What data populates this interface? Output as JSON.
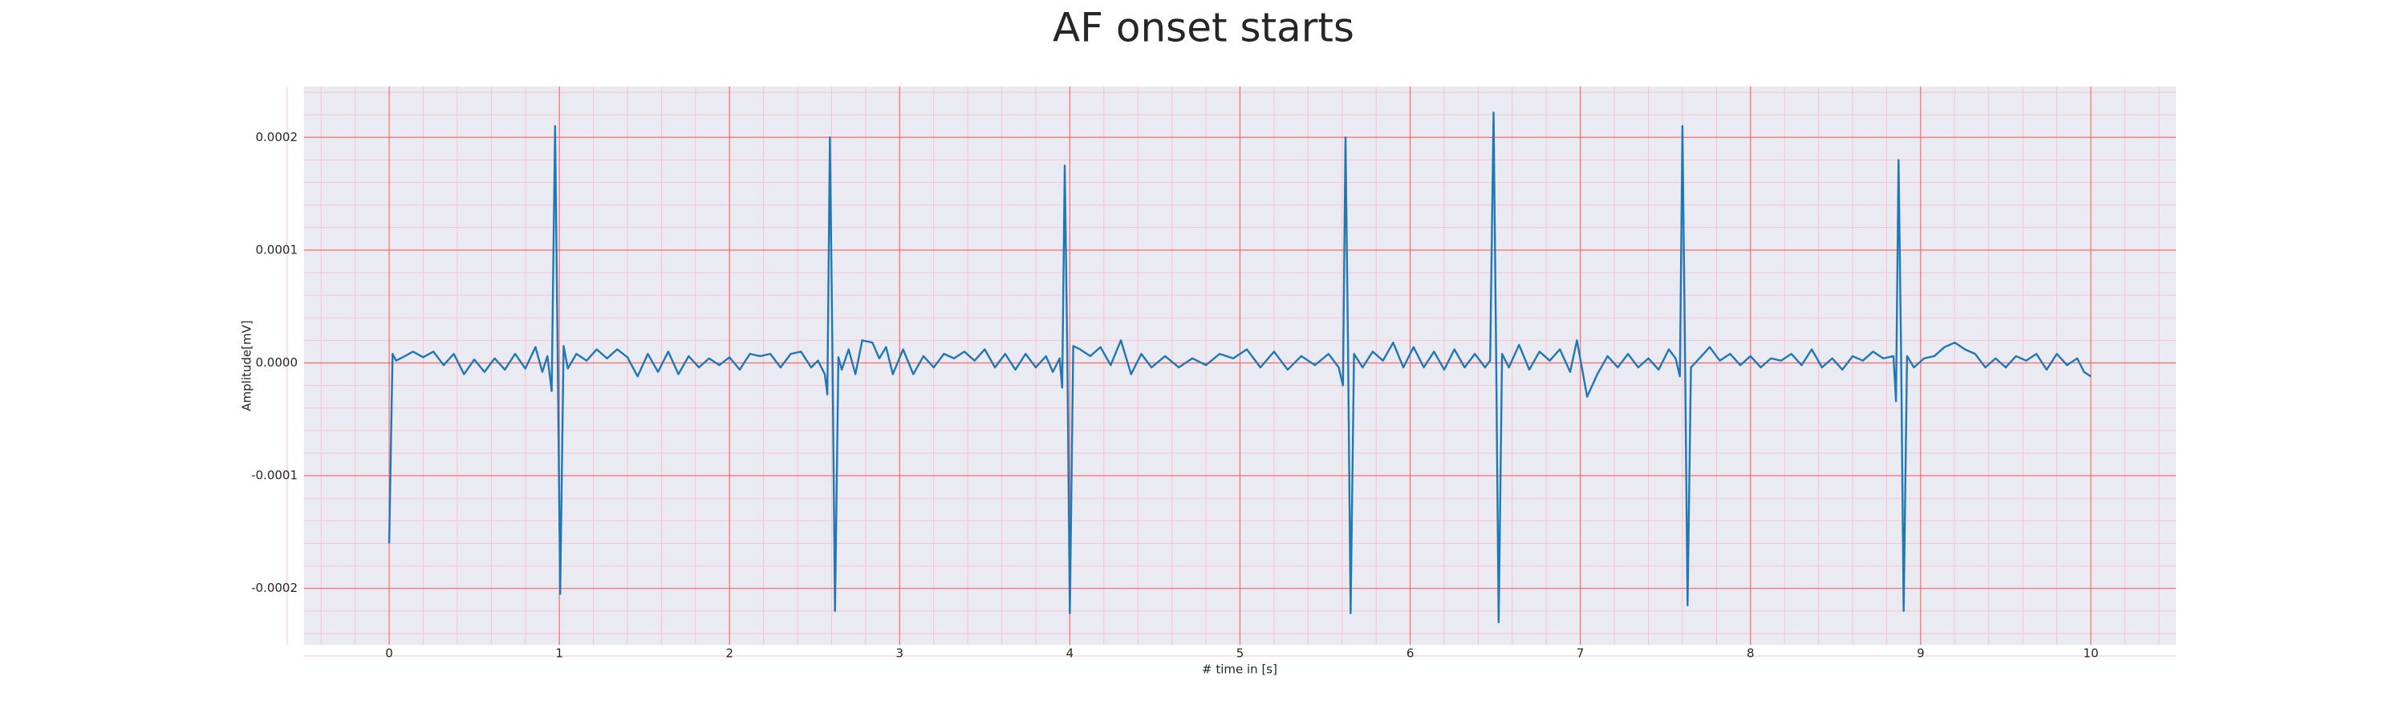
{
  "chart_data": {
    "type": "line",
    "title": "AF onset starts",
    "x_label": "# time in [s]",
    "y_label": "Amplitude[mV]",
    "xlim": [
      -0.5,
      10.5
    ],
    "ylim": [
      -0.00025,
      0.000245
    ],
    "xticks": [
      0,
      1,
      2,
      3,
      4,
      5,
      6,
      7,
      8,
      9,
      10
    ],
    "yticks": [
      -0.0002,
      -0.0001,
      {
        "value": 0,
        "label": "0.0000"
      },
      0.0001,
      0.0002
    ],
    "grid": true,
    "minor_grid": true,
    "background": "#eaeaf2",
    "grid_color": "#ff6b6b",
    "minor_grid_color": "#f6c4cc",
    "x": [
      0,
      0.02,
      0.04,
      0.08,
      0.14,
      0.2,
      0.26,
      0.32,
      0.38,
      0.44,
      0.5,
      0.56,
      0.62,
      0.68,
      0.74,
      0.8,
      0.86,
      0.9,
      0.93,
      0.955,
      0.975,
      0.99,
      1.005,
      1.025,
      1.05,
      1.1,
      1.16,
      1.22,
      1.28,
      1.34,
      1.4,
      1.46,
      1.52,
      1.58,
      1.64,
      1.7,
      1.76,
      1.82,
      1.88,
      1.94,
      2.0,
      2.06,
      2.12,
      2.18,
      2.24,
      2.3,
      2.36,
      2.42,
      2.48,
      2.52,
      2.56,
      2.575,
      2.59,
      2.605,
      2.62,
      2.64,
      2.66,
      2.7,
      2.74,
      2.78,
      2.84,
      2.88,
      2.92,
      2.96,
      3.02,
      3.08,
      3.14,
      3.2,
      3.26,
      3.32,
      3.38,
      3.44,
      3.5,
      3.56,
      3.62,
      3.68,
      3.74,
      3.8,
      3.86,
      3.9,
      3.94,
      3.955,
      3.97,
      3.985,
      4.0,
      4.02,
      4.06,
      4.12,
      4.18,
      4.24,
      4.3,
      4.36,
      4.42,
      4.48,
      4.56,
      4.64,
      4.72,
      4.8,
      4.88,
      4.96,
      5.04,
      5.12,
      5.2,
      5.28,
      5.36,
      5.44,
      5.52,
      5.58,
      5.605,
      5.62,
      5.635,
      5.65,
      5.67,
      5.72,
      5.78,
      5.84,
      5.9,
      5.96,
      6.02,
      6.08,
      6.14,
      6.2,
      6.26,
      6.32,
      6.38,
      6.44,
      6.47,
      6.49,
      6.505,
      6.52,
      6.54,
      6.58,
      6.64,
      6.7,
      6.76,
      6.82,
      6.88,
      6.94,
      6.98,
      7.04,
      7.1,
      7.16,
      7.22,
      7.28,
      7.34,
      7.4,
      7.46,
      7.52,
      7.56,
      7.585,
      7.6,
      7.615,
      7.63,
      7.65,
      7.7,
      7.76,
      7.82,
      7.88,
      7.94,
      8.0,
      8.06,
      8.12,
      8.18,
      8.24,
      8.3,
      8.36,
      8.42,
      8.48,
      8.54,
      8.6,
      8.66,
      8.72,
      8.78,
      8.84,
      8.855,
      8.87,
      8.885,
      8.9,
      8.92,
      8.96,
      9.02,
      9.08,
      9.14,
      9.2,
      9.26,
      9.32,
      9.38,
      9.44,
      9.5,
      9.56,
      9.62,
      9.68,
      9.74,
      9.8,
      9.86,
      9.92,
      9.96,
      10.0
    ],
    "series": [
      {
        "color": "#1f77b4",
        "values": [
          -0.00016,
          8e-06,
          2e-06,
          5e-06,
          1e-05,
          5e-06,
          1e-05,
          -2e-06,
          8e-06,
          -1e-05,
          3e-06,
          -8e-06,
          4e-06,
          -6e-06,
          8e-06,
          -5e-06,
          1.4e-05,
          -8e-06,
          6e-06,
          -2.5e-05,
          0.00021,
          1e-05,
          -0.000205,
          1.5e-05,
          -5e-06,
          8e-06,
          2e-06,
          1.2e-05,
          4e-06,
          1.2e-05,
          5e-06,
          -1.2e-05,
          8e-06,
          -8e-06,
          1e-05,
          -1e-05,
          6e-06,
          -4e-06,
          4e-06,
          -2e-06,
          5e-06,
          -6e-06,
          8e-06,
          6e-06,
          8e-06,
          -4e-06,
          8e-06,
          1e-05,
          -4e-06,
          2e-06,
          -1e-05,
          -2.8e-05,
          0.0002,
          1e-05,
          -0.00022,
          5e-06,
          -6e-06,
          1.2e-05,
          -1e-05,
          2e-05,
          1.8e-05,
          4e-06,
          1.4e-05,
          -1e-05,
          1.2e-05,
          -1e-05,
          6e-06,
          -4e-06,
          8e-06,
          4e-06,
          1e-05,
          2e-06,
          1.2e-05,
          -4e-06,
          8e-06,
          -6e-06,
          8e-06,
          -4e-06,
          6e-06,
          -8e-06,
          4e-06,
          -2.2e-05,
          0.000175,
          1e-05,
          -0.000222,
          1.5e-05,
          1.2e-05,
          6e-06,
          1.4e-05,
          -2e-06,
          2e-05,
          -1e-05,
          8e-06,
          -4e-06,
          6e-06,
          -4e-06,
          4e-06,
          -2e-06,
          8e-06,
          4e-06,
          1.2e-05,
          -4e-06,
          1e-05,
          -6e-06,
          6e-06,
          -2e-06,
          8e-06,
          -4e-06,
          -2e-05,
          0.0002,
          1e-05,
          -0.000222,
          8e-06,
          -4e-06,
          1e-05,
          2e-06,
          1.8e-05,
          -4e-06,
          1.4e-05,
          -4e-06,
          1e-05,
          -6e-06,
          1.2e-05,
          -4e-06,
          8e-06,
          -4e-06,
          2e-06,
          0.000222,
          1e-05,
          -0.00023,
          8e-06,
          -4e-06,
          1.6e-05,
          -6e-06,
          1e-05,
          2e-06,
          1.2e-05,
          -8e-06,
          2e-05,
          -3e-05,
          -1e-05,
          6e-06,
          -4e-06,
          8e-06,
          -4e-06,
          4e-06,
          -6e-06,
          1.2e-05,
          4e-06,
          -1.2e-05,
          0.00021,
          1e-05,
          -0.000215,
          -4e-06,
          4e-06,
          1.4e-05,
          2e-06,
          8e-06,
          -2e-06,
          6e-06,
          -4e-06,
          4e-06,
          2e-06,
          8e-06,
          -2e-06,
          1.2e-05,
          -4e-06,
          4e-06,
          -6e-06,
          6e-06,
          2e-06,
          1e-05,
          4e-06,
          6e-06,
          -3.4e-05,
          0.00018,
          8e-06,
          -0.00022,
          6e-06,
          -4e-06,
          4e-06,
          6e-06,
          1.4e-05,
          1.8e-05,
          1.2e-05,
          8e-06,
          -4e-06,
          4e-06,
          -4e-06,
          6e-06,
          2e-06,
          8e-06,
          -6e-06,
          8e-06,
          -2e-06,
          4e-06,
          -8e-06,
          -1.2e-05
        ]
      }
    ]
  }
}
